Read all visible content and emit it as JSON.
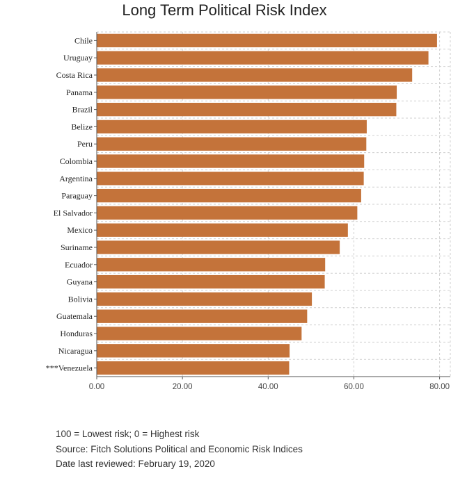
{
  "chart_data": {
    "type": "bar",
    "orientation": "horizontal",
    "title": "Long Term Political Risk Index",
    "categories": [
      "Chile",
      "Uruguay",
      "Costa Rica",
      "Panama",
      "Brazil",
      "Belize",
      "Peru",
      "Colombia",
      "Argentina",
      "Paraguay",
      "El Salvador",
      "Mexico",
      "Suriname",
      "Ecuador",
      "Guyana",
      "Bolivia",
      "Guatemala",
      "Honduras",
      "Nicaragua",
      "***Venezuela"
    ],
    "values": [
      79.4,
      77.4,
      73.6,
      70.0,
      69.9,
      63.0,
      62.9,
      62.4,
      62.3,
      61.7,
      60.8,
      58.6,
      56.7,
      53.3,
      53.2,
      50.2,
      49.1,
      47.8,
      45.0,
      44.9
    ],
    "xlim": [
      0,
      82.5
    ],
    "xticks": [
      "0.00",
      "20.00",
      "40.00",
      "60.00",
      "80.00"
    ],
    "xtick_values": [
      0,
      20,
      40,
      60,
      80
    ],
    "grid": true,
    "bar_color": "#C4733A"
  },
  "footnotes": {
    "line1": "100 = Lowest risk; 0 = Highest risk",
    "line2": "Source: Fitch Solutions Political and Economic Risk Indices",
    "line3": "Date last reviewed: February 19, 2020"
  }
}
